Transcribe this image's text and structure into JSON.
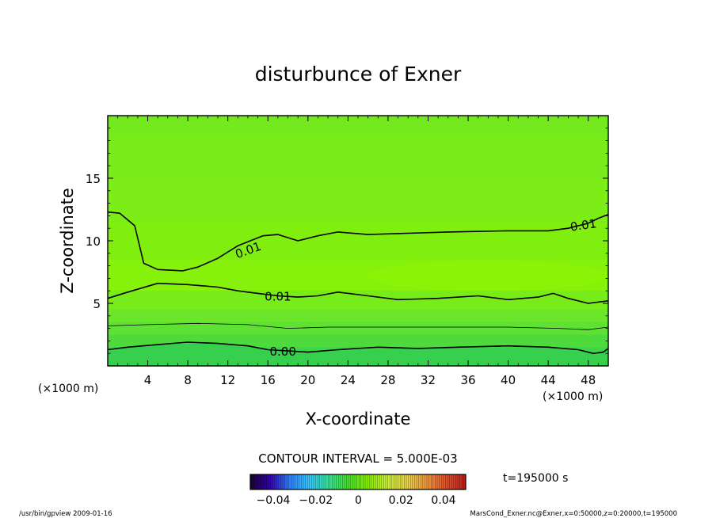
{
  "chart_data": {
    "type": "contour",
    "title": "disturbunce of Exner",
    "xlabel": "X-coordinate",
    "ylabel": "Z-coordinate",
    "x_unit": "(×1000 m)",
    "y_unit": "(×1000 m)",
    "xlim": [
      0,
      50
    ],
    "ylim": [
      0,
      20
    ],
    "x_ticks": [
      4,
      8,
      12,
      16,
      20,
      24,
      28,
      32,
      36,
      40,
      44,
      48
    ],
    "y_ticks": [
      5,
      10,
      15
    ],
    "contour_interval_text": "CONTOUR INTERVAL = 5.000E-03",
    "time_text": "t=195000 s",
    "colorbar": {
      "ticks": [
        "−0.04",
        "−0.02",
        "0",
        "0.02",
        "0.04"
      ],
      "colors": [
        "#1a0033",
        "#3300aa",
        "#2f7fff",
        "#35c8ff",
        "#35e59a",
        "#4be030",
        "#86f000",
        "#c8ee3a",
        "#e8d24a",
        "#f09a40",
        "#e0502a",
        "#b8201a"
      ]
    },
    "bands": [
      {
        "z_top": 20.0,
        "color": "#74e91d"
      },
      {
        "z_top": 18.5,
        "color": "#78ec1a"
      },
      {
        "z_top": 15.0,
        "color": "#7ced16"
      },
      {
        "z_top": 11.5,
        "color": "#80ef10"
      },
      {
        "z_top": 8.5,
        "color": "#86f20c"
      },
      {
        "z_top": 6.0,
        "color": "#78ec1a"
      },
      {
        "z_top": 4.5,
        "color": "#6be62a"
      },
      {
        "z_top": 3.5,
        "color": "#5ee034"
      },
      {
        "z_top": 2.5,
        "color": "#4fda3c"
      },
      {
        "z_top": 1.5,
        "color": "#40d548"
      }
    ],
    "contours": [
      {
        "label": "0.01",
        "label_x": 47.5,
        "label_z": 11.3,
        "label_angle": -8,
        "points": [
          [
            0,
            12.3
          ],
          [
            1.2,
            12.2
          ],
          [
            2.7,
            11.2
          ],
          [
            3.6,
            8.2
          ],
          [
            5,
            7.7
          ],
          [
            7.5,
            7.6
          ],
          [
            9,
            7.9
          ],
          [
            11,
            8.6
          ],
          [
            13,
            9.6
          ],
          [
            15.5,
            10.4
          ],
          [
            17,
            10.5
          ],
          [
            19,
            10.0
          ],
          [
            21,
            10.4
          ],
          [
            23,
            10.7
          ],
          [
            26,
            10.5
          ],
          [
            30,
            10.6
          ],
          [
            34,
            10.7
          ],
          [
            40,
            10.8
          ],
          [
            44,
            10.8
          ],
          [
            46,
            11.0
          ],
          [
            48,
            11.4
          ],
          [
            49,
            11.8
          ],
          [
            50,
            12.1
          ]
        ]
      },
      {
        "label": "0.01",
        "label_x": 14.0,
        "label_z": 9.3,
        "label_angle": -20,
        "points": []
      },
      {
        "label": "0.01",
        "label_x": 17.0,
        "label_z": 5.6,
        "label_angle": 0,
        "points": [
          [
            0,
            5.4
          ],
          [
            2,
            5.9
          ],
          [
            5,
            6.6
          ],
          [
            8,
            6.5
          ],
          [
            11,
            6.3
          ],
          [
            13,
            6.0
          ],
          [
            15,
            5.8
          ],
          [
            17,
            5.6
          ],
          [
            19,
            5.5
          ],
          [
            21,
            5.6
          ],
          [
            23,
            5.9
          ],
          [
            26,
            5.6
          ],
          [
            29,
            5.3
          ],
          [
            33,
            5.4
          ],
          [
            37,
            5.6
          ],
          [
            40,
            5.3
          ],
          [
            43,
            5.5
          ],
          [
            44.5,
            5.8
          ],
          [
            46,
            5.4
          ],
          [
            48,
            5.0
          ],
          [
            50,
            5.2
          ]
        ]
      },
      {
        "label": "0.00",
        "label_x": 17.5,
        "label_z": 1.2,
        "label_angle": 0,
        "points": [
          [
            0,
            1.3
          ],
          [
            2,
            1.5
          ],
          [
            5,
            1.7
          ],
          [
            8,
            1.9
          ],
          [
            11,
            1.8
          ],
          [
            14,
            1.6
          ],
          [
            16,
            1.3
          ],
          [
            18,
            1.2
          ],
          [
            20,
            1.1
          ],
          [
            23,
            1.3
          ],
          [
            27,
            1.5
          ],
          [
            31,
            1.4
          ],
          [
            35,
            1.5
          ],
          [
            40,
            1.6
          ],
          [
            44,
            1.5
          ],
          [
            47,
            1.3
          ],
          [
            48.5,
            1.0
          ],
          [
            49.5,
            1.1
          ],
          [
            50,
            1.4
          ]
        ]
      },
      {
        "label": "",
        "label_x": 0,
        "label_z": 0,
        "label_angle": 0,
        "thin": true,
        "points": [
          [
            0,
            3.2
          ],
          [
            4,
            3.3
          ],
          [
            9,
            3.4
          ],
          [
            14,
            3.3
          ],
          [
            18,
            3.0
          ],
          [
            22,
            3.1
          ],
          [
            28,
            3.1
          ],
          [
            34,
            3.1
          ],
          [
            40,
            3.1
          ],
          [
            45,
            3.0
          ],
          [
            48,
            2.9
          ],
          [
            50,
            3.1
          ]
        ]
      }
    ]
  },
  "footer": {
    "left": "/usr/bin/gpview  2009-01-16",
    "right": "MarsCond_Exner.nc@Exner,x=0:50000,z=0:20000,t=195000"
  }
}
